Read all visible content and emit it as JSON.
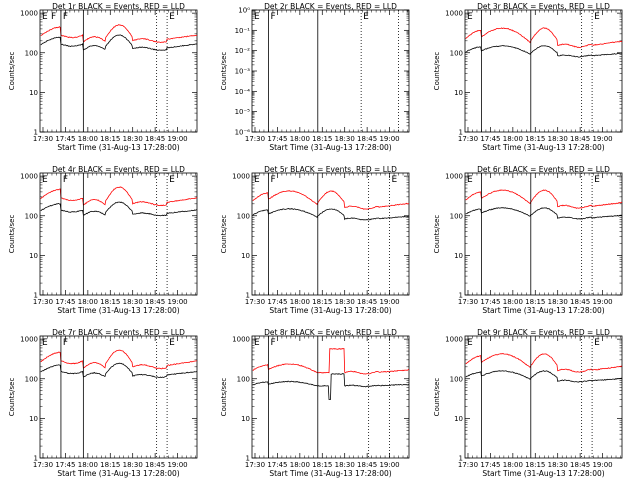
{
  "figure": {
    "xlabel": "Start Time (31-Aug-13 17:28:00)",
    "ylabel": "Counts/sec",
    "colors": {
      "events": "#000000",
      "lld": "#ff0000",
      "axes": "#000000"
    }
  },
  "chart_data": [
    {
      "type": "line",
      "title": "Det 1r BLACK = Events, RED = LLD",
      "xlabel": "Start Time (31-Aug-13 17:28:00)",
      "ylabel": "Counts/sec",
      "x_tick_labels": [
        "17:30",
        "17:45",
        "18:00",
        "18:15",
        "18:30",
        "18:45",
        "19:00"
      ],
      "x_range_minutes": [
        0,
        105
      ],
      "y_scale": "log",
      "y_tick_labels": [
        "1",
        "10",
        "100",
        "1000"
      ],
      "y_range": [
        1,
        1200
      ],
      "markers": [
        {
          "x_min": 14,
          "label": "F",
          "style": "solid"
        },
        {
          "x_min": 29,
          "label": "",
          "style": "solid"
        },
        {
          "x_min": 78,
          "label": "",
          "style": "dotted"
        },
        {
          "x_min": 85,
          "label": "E",
          "style": "dotted"
        }
      ],
      "corner_labels": [
        "E",
        "F"
      ],
      "series": [
        {
          "name": "Events",
          "color": "#000000",
          "shape": "A",
          "base": 140,
          "amp": 0.28
        },
        {
          "name": "LLD",
          "color": "#ff0000",
          "shape": "A",
          "base": 230,
          "amp": 0.32
        }
      ]
    },
    {
      "type": "line",
      "title": "Det 2r BLACK = Events, RED = LLD",
      "xlabel": "Start Time (31-Aug-13 17:28:00)",
      "ylabel": "Counts/sec",
      "x_tick_labels": [
        "17:30",
        "17:45",
        "18:00",
        "18:15",
        "18:30",
        "18:45",
        "19:00"
      ],
      "x_range_minutes": [
        0,
        105
      ],
      "y_scale": "log",
      "y_tick_labels": [
        "10⁻⁶",
        "10⁻⁵",
        "10⁻⁴",
        "10⁻³",
        "10⁻²",
        "10⁻¹",
        "10⁰"
      ],
      "y_range": [
        1e-06,
        1
      ],
      "markers": [
        {
          "x_min": 11,
          "label": "F",
          "style": "solid"
        },
        {
          "x_min": 44,
          "label": "",
          "style": "solid"
        },
        {
          "x_min": 73,
          "label": "E",
          "style": "dotted"
        },
        {
          "x_min": 98,
          "label": "",
          "style": "dotted"
        }
      ],
      "corner_labels": [
        "E"
      ],
      "series": []
    },
    {
      "type": "line",
      "title": "Det 3r BLACK = Events, RED = LLD",
      "xlabel": "Start Time (31-Aug-13 17:28:00)",
      "ylabel": "Counts/sec",
      "x_tick_labels": [
        "17:30",
        "17:45",
        "18:00",
        "18:15",
        "18:30",
        "18:45",
        "19:00"
      ],
      "x_range_minutes": [
        0,
        105
      ],
      "y_scale": "log",
      "y_tick_labels": [
        "1",
        "10",
        "100",
        "1000"
      ],
      "y_range": [
        1,
        1200
      ],
      "markers": [
        {
          "x_min": 11,
          "label": "",
          "style": "solid"
        },
        {
          "x_min": 44,
          "label": "",
          "style": "solid"
        },
        {
          "x_min": 78,
          "label": "",
          "style": "dotted"
        },
        {
          "x_min": 85,
          "label": "E",
          "style": "dotted"
        }
      ],
      "corner_labels": [
        "E"
      ],
      "series": [
        {
          "name": "Events",
          "color": "#000000",
          "shape": "B",
          "base": 95,
          "amp": 0.22
        },
        {
          "name": "LLD",
          "color": "#ff0000",
          "shape": "B",
          "base": 190,
          "amp": 0.38
        }
      ]
    },
    {
      "type": "line",
      "title": "Det 4r BLACK = Events, RED = LLD",
      "xlabel": "Start Time (31-Aug-13 17:28:00)",
      "ylabel": "Counts/sec",
      "x_tick_labels": [
        "17:30",
        "17:45",
        "18:00",
        "18:15",
        "18:30",
        "18:45",
        "19:00"
      ],
      "x_range_minutes": [
        0,
        105
      ],
      "y_scale": "log",
      "y_tick_labels": [
        "1",
        "10",
        "100",
        "1000"
      ],
      "y_range": [
        1,
        1200
      ],
      "markers": [
        {
          "x_min": 14,
          "label": "F",
          "style": "solid"
        },
        {
          "x_min": 29,
          "label": "",
          "style": "solid"
        },
        {
          "x_min": 78,
          "label": "",
          "style": "dotted"
        },
        {
          "x_min": 85,
          "label": "E",
          "style": "dotted"
        }
      ],
      "corner_labels": [
        "E"
      ],
      "series": [
        {
          "name": "Events",
          "color": "#000000",
          "shape": "A",
          "base": 120,
          "amp": 0.25
        },
        {
          "name": "LLD",
          "color": "#ff0000",
          "shape": "A",
          "base": 230,
          "amp": 0.34
        }
      ]
    },
    {
      "type": "line",
      "title": "Det 5r BLACK = Events, RED = LLD",
      "xlabel": "Start Time (31-Aug-13 17:28:00)",
      "ylabel": "Counts/sec",
      "x_tick_labels": [
        "17:30",
        "17:45",
        "18:00",
        "18:15",
        "18:30",
        "18:45",
        "19:00"
      ],
      "x_range_minutes": [
        0,
        105
      ],
      "y_scale": "log",
      "y_tick_labels": [
        "1",
        "10",
        "100",
        "1000"
      ],
      "y_range": [
        1,
        1200
      ],
      "markers": [
        {
          "x_min": 11,
          "label": "F",
          "style": "solid"
        },
        {
          "x_min": 44,
          "label": "",
          "style": "solid"
        },
        {
          "x_min": 78,
          "label": "",
          "style": "dotted"
        },
        {
          "x_min": 92,
          "label": "E",
          "style": "dotted"
        }
      ],
      "corner_labels": [
        "E"
      ],
      "series": [
        {
          "name": "Events",
          "color": "#000000",
          "shape": "B",
          "base": 95,
          "amp": 0.22
        },
        {
          "name": "LLD",
          "color": "#ff0000",
          "shape": "B",
          "base": 200,
          "amp": 0.36
        }
      ]
    },
    {
      "type": "line",
      "title": "Det 6r BLACK = Events, RED = LLD",
      "xlabel": "Start Time (31-Aug-13 17:28:00)",
      "ylabel": "Counts/sec",
      "x_tick_labels": [
        "17:30",
        "17:45",
        "18:00",
        "18:15",
        "18:30",
        "18:45",
        "19:00"
      ],
      "x_range_minutes": [
        0,
        105
      ],
      "y_scale": "log",
      "y_tick_labels": [
        "1",
        "10",
        "100",
        "1000"
      ],
      "y_range": [
        1,
        1200
      ],
      "markers": [
        {
          "x_min": 11,
          "label": "",
          "style": "solid"
        },
        {
          "x_min": 44,
          "label": "",
          "style": "solid"
        },
        {
          "x_min": 78,
          "label": "",
          "style": "dotted"
        },
        {
          "x_min": 85,
          "label": "E",
          "style": "dotted"
        }
      ],
      "corner_labels": [
        "E"
      ],
      "series": [
        {
          "name": "Events",
          "color": "#000000",
          "shape": "B",
          "base": 100,
          "amp": 0.22
        },
        {
          "name": "LLD",
          "color": "#ff0000",
          "shape": "B",
          "base": 210,
          "amp": 0.36
        }
      ]
    },
    {
      "type": "line",
      "title": "Det 7r BLACK = Events, RED = LLD",
      "xlabel": "Start Time (31-Aug-13 17:28:00)",
      "ylabel": "Counts/sec",
      "x_tick_labels": [
        "17:30",
        "17:45",
        "18:00",
        "18:15",
        "18:30",
        "18:45",
        "19:00"
      ],
      "x_range_minutes": [
        0,
        105
      ],
      "y_scale": "log",
      "y_tick_labels": [
        "1",
        "10",
        "100",
        "1000"
      ],
      "y_range": [
        1,
        1200
      ],
      "markers": [
        {
          "x_min": 14,
          "label": "F",
          "style": "solid"
        },
        {
          "x_min": 29,
          "label": "",
          "style": "solid"
        },
        {
          "x_min": 78,
          "label": "",
          "style": "dotted"
        },
        {
          "x_min": 85,
          "label": "E",
          "style": "dotted"
        }
      ],
      "corner_labels": [
        "E"
      ],
      "series": [
        {
          "name": "Events",
          "color": "#000000",
          "shape": "A",
          "base": 130,
          "amp": 0.26
        },
        {
          "name": "LLD",
          "color": "#ff0000",
          "shape": "A",
          "base": 230,
          "amp": 0.34
        }
      ]
    },
    {
      "type": "line",
      "title": "Det 8r BLACK = Events, RED = LLD",
      "xlabel": "Start Time (31-Aug-13 17:28:00)",
      "ylabel": "Counts/sec",
      "x_tick_labels": [
        "17:30",
        "17:45",
        "18:00",
        "18:15",
        "18:30",
        "18:45",
        "19:00"
      ],
      "x_range_minutes": [
        0,
        105
      ],
      "y_scale": "log",
      "y_tick_labels": [
        "1",
        "10",
        "100",
        "1000"
      ],
      "y_range": [
        1,
        1200
      ],
      "markers": [
        {
          "x_min": 11,
          "label": "F",
          "style": "solid"
        },
        {
          "x_min": 44,
          "label": "",
          "style": "solid"
        },
        {
          "x_min": 78,
          "label": "",
          "style": "dotted"
        },
        {
          "x_min": 92,
          "label": "",
          "style": "dotted"
        }
      ],
      "corner_labels": [
        "E"
      ],
      "series": [
        {
          "name": "Events",
          "color": "#000000",
          "shape": "C",
          "base": 70,
          "amp": 0.15
        },
        {
          "name": "LLD",
          "color": "#ff0000",
          "shape": "C",
          "base": 160,
          "amp": 0.3
        }
      ]
    },
    {
      "type": "line",
      "title": "Det 9r BLACK = Events, RED = LLD",
      "xlabel": "Start Time (31-Aug-13 17:28:00)",
      "ylabel": "Counts/sec",
      "x_tick_labels": [
        "17:30",
        "17:45",
        "18:00",
        "18:15",
        "18:30",
        "18:45",
        "19:00"
      ],
      "x_range_minutes": [
        0,
        105
      ],
      "y_scale": "log",
      "y_tick_labels": [
        "1",
        "10",
        "100",
        "1000"
      ],
      "y_range": [
        1,
        1200
      ],
      "markers": [
        {
          "x_min": 11,
          "label": "",
          "style": "solid"
        },
        {
          "x_min": 44,
          "label": "",
          "style": "solid"
        },
        {
          "x_min": 78,
          "label": "",
          "style": "dotted"
        },
        {
          "x_min": 85,
          "label": "E",
          "style": "dotted"
        }
      ],
      "corner_labels": [
        "E"
      ],
      "series": [
        {
          "name": "Events",
          "color": "#000000",
          "shape": "B",
          "base": 100,
          "amp": 0.22
        },
        {
          "name": "LLD",
          "color": "#ff0000",
          "shape": "B",
          "base": 200,
          "amp": 0.36
        }
      ]
    }
  ]
}
